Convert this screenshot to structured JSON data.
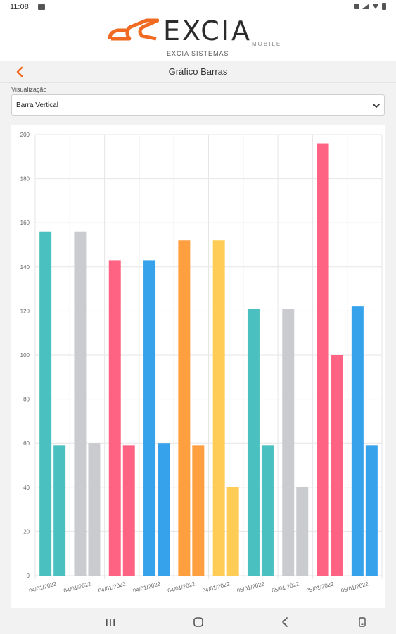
{
  "status_bar": {
    "time": "11:08",
    "icons": [
      "image-icon",
      "mute-icon",
      "signal-icon",
      "wifi-icon",
      "battery-icon"
    ]
  },
  "brand": {
    "word": "EXCIA",
    "mobile": "MOBILE",
    "company": "EXCIA SISTEMAS",
    "logo_color": "#f06a22"
  },
  "nav": {
    "title": "Gráfico Barras",
    "back_icon": "chevron-left-icon",
    "accent": "#f06a22"
  },
  "visualization": {
    "label": "Visualização",
    "selected": "Barra Vertical"
  },
  "chart_data": {
    "type": "bar",
    "orientation": "vertical",
    "categories": [
      "04/01/2022",
      "04/01/2022",
      "04/01/2022",
      "04/01/2022",
      "04/01/2022",
      "04/01/2022",
      "05/01/2022",
      "05/01/2022",
      "05/01/2022",
      "05/01/2022"
    ],
    "series": [
      {
        "values": [
          156,
          156,
          143,
          143,
          152,
          152,
          121,
          121,
          196,
          122
        ]
      },
      {
        "values": [
          59,
          60,
          59,
          60,
          59,
          40,
          59,
          40,
          100,
          59
        ]
      }
    ],
    "category_colors": [
      "#4bc0c0",
      "#c9cbcf",
      "#ff6384",
      "#36a2eb",
      "#ff9f40",
      "#ffcd56",
      "#4bc0c0",
      "#c9cbcf",
      "#ff6384",
      "#36a2eb"
    ],
    "ylim": [
      0,
      200
    ],
    "yticks": [
      "0",
      "20",
      "40",
      "60",
      "80",
      "100",
      "120",
      "140",
      "160",
      "180",
      "200"
    ],
    "grid": true,
    "legend": "none",
    "xlabel": "",
    "ylabel": ""
  },
  "system_nav": {
    "buttons": [
      "recents-icon",
      "home-icon",
      "back-icon",
      "keyboard-icon"
    ]
  }
}
